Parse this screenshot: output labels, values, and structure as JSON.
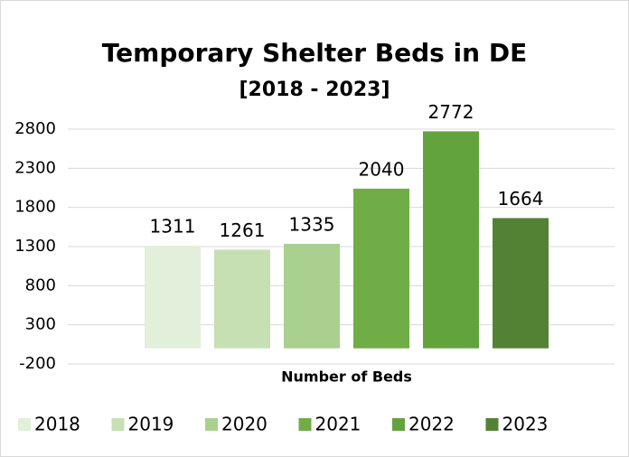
{
  "chart_data": {
    "type": "bar",
    "title": "Temporary Shelter Beds in DE",
    "subtitle": "[2018 - 2023]",
    "categories": [
      "Number of Beds"
    ],
    "series": [
      {
        "name": "2018",
        "color": "#e2efda",
        "values": [
          1311
        ]
      },
      {
        "name": "2019",
        "color": "#c6e0b4",
        "values": [
          1261
        ]
      },
      {
        "name": "2020",
        "color": "#a9d08e",
        "values": [
          1335
        ]
      },
      {
        "name": "2021",
        "color": "#70ad47",
        "values": [
          2040
        ]
      },
      {
        "name": "2022",
        "color": "#63a33e",
        "values": [
          2772
        ]
      },
      {
        "name": "2023",
        "color": "#548235",
        "values": [
          1664
        ]
      }
    ],
    "ylim": [
      -200,
      2800
    ],
    "yticks": [
      -200,
      300,
      800,
      1300,
      1800,
      2300,
      2800
    ],
    "grid": true,
    "legend": "bottom"
  }
}
